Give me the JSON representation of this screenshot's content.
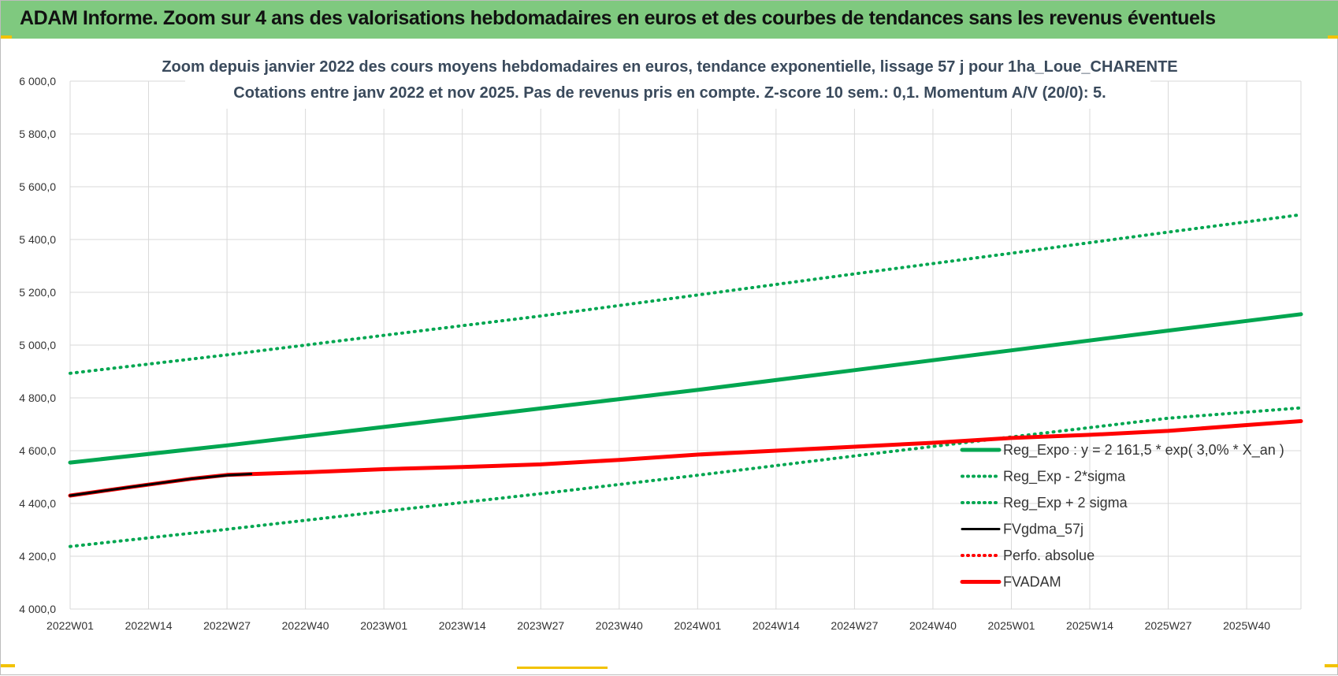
{
  "page": {
    "banner_title": "ADAM Informe. Zoom sur 4 ans des valorisations hebdomadaires en euros et des courbes de tendances sans les revenus éventuels"
  },
  "colors": {
    "banner": "#7fc97f",
    "green": "#00a650",
    "red": "#ff0000",
    "black": "#000000",
    "grid": "#d9d9d9"
  },
  "chart_data": {
    "type": "line",
    "title": "Zoom depuis janvier 2022 des cours moyens hebdomadaires en euros, tendance exponentielle, lissage 57 j pour 1ha_Loue_CHARENTE",
    "subtitle": "Cotations entre janv 2022 et nov 2025. Pas de revenus pris en compte. Z-score 10 sem.: 0,1. Momentum A/V (20/0): 5.",
    "xlabel": "",
    "ylabel": "",
    "ylim": [
      4000,
      6000
    ],
    "yticks": [
      4000,
      4200,
      4400,
      4600,
      4800,
      5000,
      5200,
      5400,
      5600,
      5800,
      6000
    ],
    "ytick_labels": [
      "4 000,0",
      "4 200,0",
      "4 400,0",
      "4 600,0",
      "4 800,0",
      "5 000,0",
      "5 200,0",
      "5 400,0",
      "5 600,0",
      "5 800,0",
      "6 000,0"
    ],
    "xlim": [
      0,
      204
    ],
    "xtick_weeks": [
      0,
      13,
      26,
      39,
      52,
      65,
      78,
      91,
      104,
      117,
      130,
      143,
      156,
      169,
      182,
      195
    ],
    "xtick_labels": [
      "2022W01",
      "2022W14",
      "2022W27",
      "2022W40",
      "2023W01",
      "2023W14",
      "2023W27",
      "2023W40",
      "2024W01",
      "2024W14",
      "2024W27",
      "2024W40",
      "2025W01",
      "2025W14",
      "2025W27",
      "2025W40"
    ],
    "grid": true,
    "legend_position": "bottom-right",
    "series": [
      {
        "name": "Reg_Expo : y = 2 161,5 * exp( 3,0% *  X_an )",
        "style": "solid-thick",
        "color": "#00a650",
        "x": [
          0,
          26,
          52,
          78,
          104,
          130,
          156,
          182,
          204
        ],
        "y": [
          4555,
          4620,
          4690,
          4760,
          4830,
          4905,
          4980,
          5055,
          5117
        ]
      },
      {
        "name": "Reg_Exp - 2*sigma",
        "style": "dotted",
        "color": "#00a650",
        "x": [
          0,
          26,
          52,
          78,
          104,
          130,
          156,
          182,
          204
        ],
        "y": [
          4237,
          4302,
          4370,
          4437,
          4507,
          4580,
          4652,
          4723,
          4762
        ]
      },
      {
        "name": "Reg_Exp + 2 sigma",
        "style": "dotted",
        "color": "#00a650",
        "x": [
          0,
          26,
          52,
          78,
          104,
          130,
          156,
          182,
          204
        ],
        "y": [
          4893,
          4963,
          5037,
          5110,
          5190,
          5270,
          5348,
          5428,
          5494
        ]
      },
      {
        "name": "FVgdma_57j",
        "style": "solid",
        "color": "#000000",
        "x": [
          0,
          10,
          20,
          26,
          30
        ],
        "y": [
          4430,
          4462,
          4493,
          4507,
          4512
        ]
      },
      {
        "name": "Perfo. absolue",
        "style": "dotted",
        "color": "#ff0000",
        "x": [
          0,
          10,
          20,
          26,
          39,
          52,
          65,
          78,
          91,
          104,
          117,
          130,
          143,
          156,
          169,
          182,
          195,
          204
        ],
        "y": [
          4430,
          4462,
          4493,
          4508,
          4518,
          4530,
          4538,
          4548,
          4565,
          4585,
          4600,
          4615,
          4630,
          4648,
          4660,
          4675,
          4697,
          4712
        ]
      },
      {
        "name": "FVADAM",
        "style": "solid-thick",
        "color": "#ff0000",
        "x": [
          0,
          10,
          20,
          26,
          39,
          52,
          65,
          78,
          91,
          104,
          117,
          130,
          143,
          156,
          169,
          182,
          195,
          204
        ],
        "y": [
          4430,
          4462,
          4493,
          4508,
          4518,
          4530,
          4538,
          4548,
          4565,
          4585,
          4600,
          4615,
          4630,
          4648,
          4660,
          4675,
          4697,
          4712
        ]
      }
    ]
  }
}
